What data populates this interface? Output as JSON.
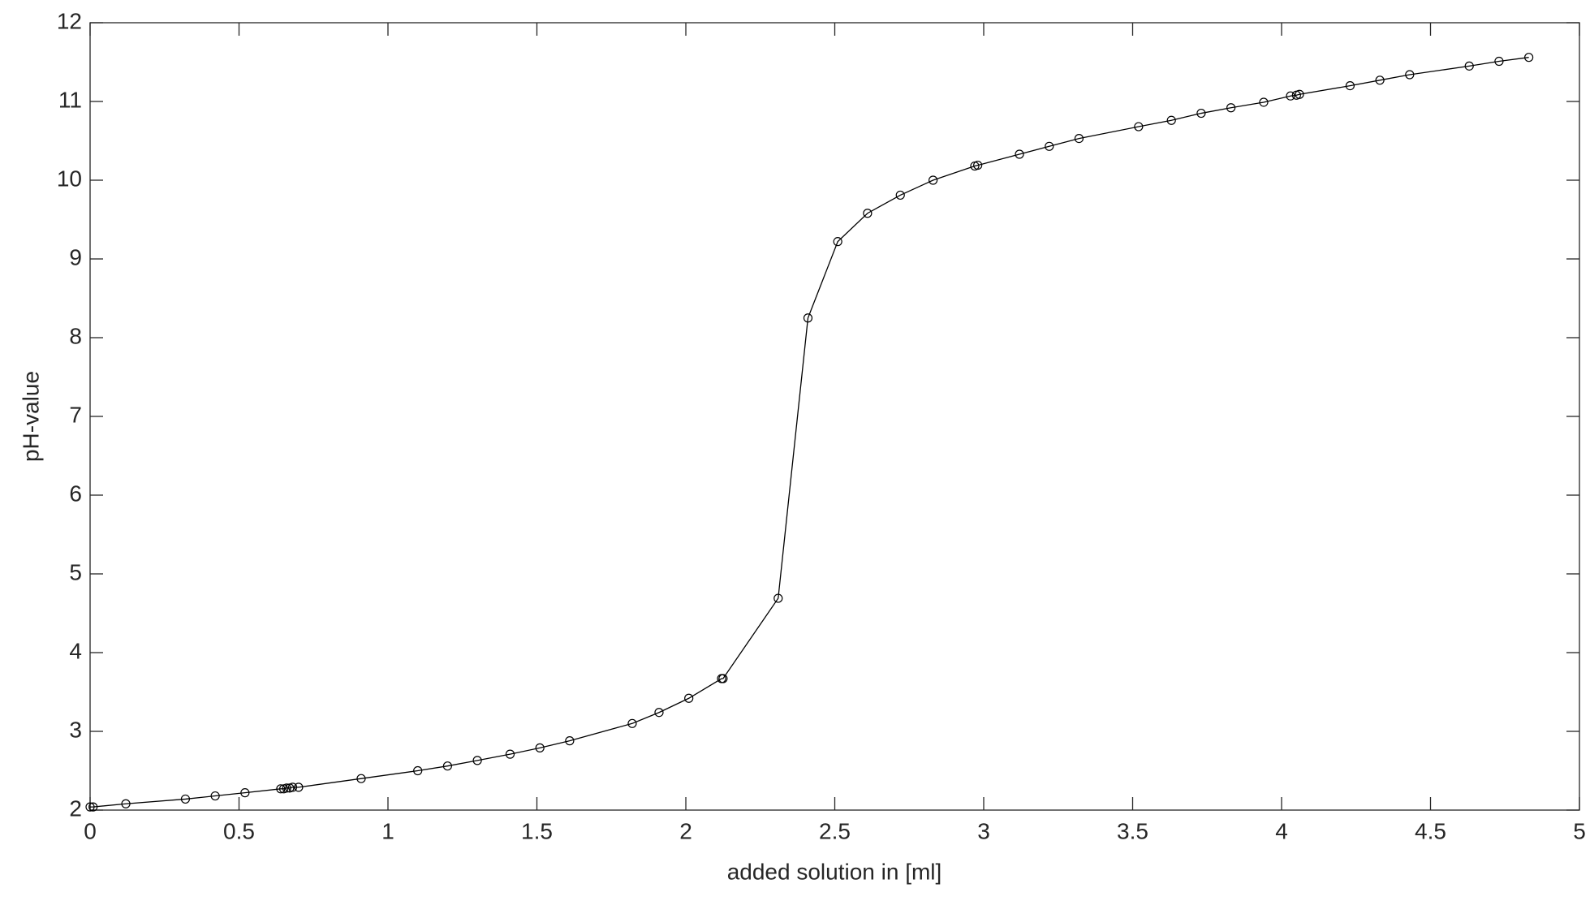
{
  "chart_data": {
    "type": "line",
    "x_label": "added solution in [ml]",
    "y_label": "pH-value",
    "color": "#000000",
    "marker": "circle",
    "x": [
      0,
      0.01,
      0.12,
      0.32,
      0.42,
      0.52,
      0.64,
      0.65,
      0.66,
      0.67,
      0.68,
      0.7,
      0.91,
      1.1,
      1.2,
      1.3,
      1.41,
      1.51,
      1.61,
      1.82,
      1.91,
      2.01,
      2.12,
      2.125,
      2.31,
      2.41,
      2.51,
      2.61,
      2.72,
      2.83,
      2.97,
      2.98,
      3.12,
      3.22,
      3.32,
      3.52,
      3.63,
      3.73,
      3.83,
      3.94,
      4.03,
      4.05,
      4.06,
      4.23,
      4.33,
      4.43,
      4.63,
      4.73,
      4.83
    ],
    "values": [
      2.04,
      2.04,
      2.08,
      2.14,
      2.18,
      2.22,
      2.27,
      2.27,
      2.28,
      2.28,
      2.29,
      2.29,
      2.4,
      2.5,
      2.56,
      2.63,
      2.71,
      2.79,
      2.88,
      3.1,
      3.24,
      3.42,
      3.67,
      3.67,
      4.69,
      8.25,
      9.22,
      9.58,
      9.81,
      10.0,
      10.18,
      10.19,
      10.33,
      10.43,
      10.53,
      10.68,
      10.76,
      10.85,
      10.92,
      10.99,
      11.07,
      11.08,
      11.09,
      11.2,
      11.27,
      11.34,
      11.45,
      11.51,
      11.56
    ],
    "xlim": [
      0,
      5
    ],
    "xticks": [
      0,
      0.5,
      1,
      1.5,
      2,
      2.5,
      3,
      3.5,
      4,
      4.5,
      5
    ],
    "ylim": [
      2,
      12
    ],
    "yticks": [
      2,
      3,
      4,
      5,
      6,
      7,
      8,
      9,
      10,
      11,
      12
    ],
    "grid": false
  }
}
